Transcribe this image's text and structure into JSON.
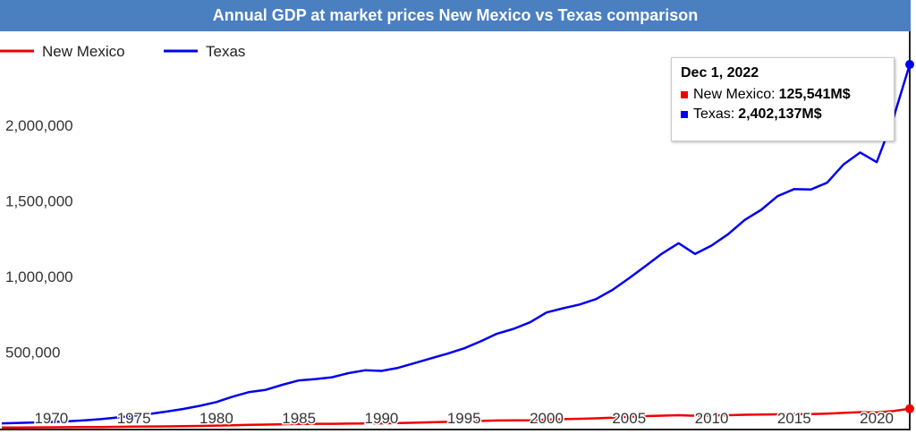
{
  "title": "Annual GDP at market prices New Mexico vs Texas comparison",
  "tooltip": {
    "date": "Dec 1, 2022",
    "rows": [
      {
        "label": "New Mexico:",
        "value": "125,541M$",
        "color": "#ee0000"
      },
      {
        "label": "Texas:",
        "value": "2,402,137M$",
        "color": "#0000ee"
      }
    ]
  },
  "chart_data": {
    "type": "line",
    "title": "Annual GDP at market prices New Mexico vs Texas comparison",
    "x": [
      1967,
      1968,
      1969,
      1970,
      1971,
      1972,
      1973,
      1974,
      1975,
      1976,
      1977,
      1978,
      1979,
      1980,
      1981,
      1982,
      1983,
      1984,
      1985,
      1986,
      1987,
      1988,
      1989,
      1990,
      1991,
      1992,
      1993,
      1994,
      1995,
      1996,
      1997,
      1998,
      1999,
      2000,
      2001,
      2002,
      2003,
      2004,
      2005,
      2006,
      2007,
      2008,
      2009,
      2010,
      2011,
      2012,
      2013,
      2014,
      2015,
      2016,
      2017,
      2018,
      2019,
      2020,
      2021,
      2022
    ],
    "series": [
      {
        "name": "New Mexico",
        "color": "#ee0000",
        "values": [
          1500,
          2000,
          2500,
          3000,
          3500,
          4000,
          5000,
          6000,
          7000,
          8000,
          9000,
          10000,
          12000,
          14000,
          16000,
          19000,
          21000,
          23000,
          25000,
          26000,
          26000,
          27000,
          28000,
          29000,
          31000,
          33000,
          36000,
          39000,
          42000,
          45000,
          48000,
          49000,
          50000,
          54000,
          57000,
          59000,
          62000,
          66000,
          72000,
          77000,
          80000,
          83000,
          79000,
          81000,
          83000,
          86000,
          87000,
          89000,
          90000,
          90000,
          93000,
          98000,
          103000,
          101000,
          110000,
          125541
        ]
      },
      {
        "name": "Texas",
        "color": "#0000ee",
        "values": [
          29000,
          32000,
          35000,
          38000,
          43000,
          49000,
          57000,
          68000,
          80000,
          92000,
          107000,
          124000,
          145000,
          170000,
          206000,
          236000,
          251000,
          284000,
          313000,
          322000,
          334000,
          361000,
          380000,
          376000,
          396000,
          427000,
          459000,
          490000,
          525000,
          571000,
          622000,
          654000,
          697000,
          762000,
          790000,
          815000,
          851000,
          912000,
          989000,
          1069000,
          1152000,
          1220000,
          1149000,
          1205000,
          1280000,
          1374000,
          1441000,
          1532000,
          1578000,
          1575000,
          1621000,
          1742000,
          1820000,
          1756000,
          2043000,
          2402137
        ]
      }
    ],
    "xticks": [
      "1970",
      "1975",
      "1980",
      "1985",
      "1990",
      "1995",
      "2000",
      "2005",
      "2010",
      "2015",
      "2020"
    ],
    "yticks": [
      "500,000",
      "1,000,000",
      "1,500,000",
      "2,000,000"
    ],
    "ylim": [
      0,
      2400000
    ],
    "grid": false,
    "legend_position": "top-left"
  }
}
